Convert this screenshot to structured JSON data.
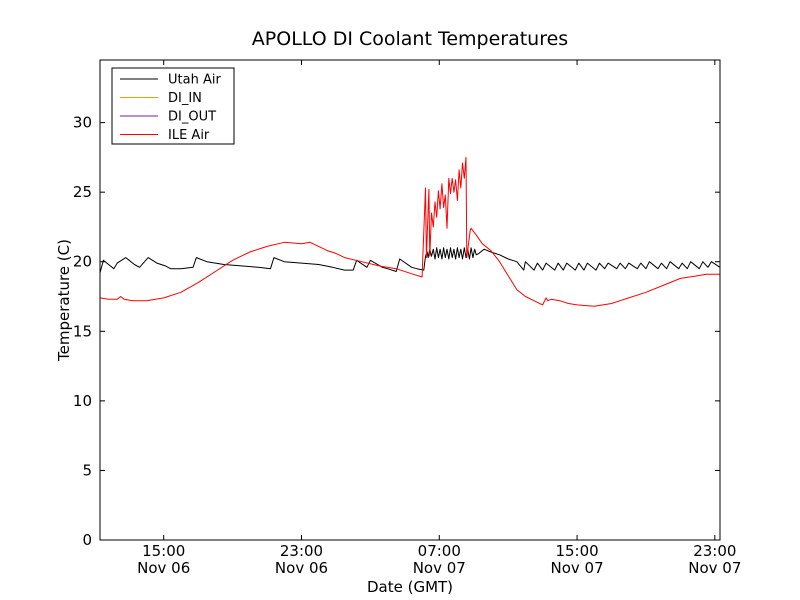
{
  "chart_data": {
    "type": "line",
    "title": "APOLLO DI Coolant Temperatures",
    "xlabel": "Date (GMT)",
    "ylabel": "Temperature (C)",
    "ylim": [
      0,
      34.5
    ],
    "xlim_hours": [
      11.3,
      47.3
    ],
    "x_unit": "hours since Nov 06 00:00 GMT",
    "yticks": [
      0,
      5,
      10,
      15,
      20,
      25,
      30
    ],
    "xticks": [
      {
        "value": 15,
        "time": "15:00",
        "date": "Nov 06"
      },
      {
        "value": 23,
        "time": "23:00",
        "date": "Nov 06"
      },
      {
        "value": 31,
        "time": "07:00",
        "date": "Nov 07"
      },
      {
        "value": 39,
        "time": "15:00",
        "date": "Nov 07"
      },
      {
        "value": 47,
        "time": "23:00",
        "date": "Nov 07"
      }
    ],
    "legend": {
      "placement": "top-left",
      "entries": [
        "Utah Air",
        "DI_IN",
        "DI_OUT",
        "ILE Air"
      ]
    },
    "series": [
      {
        "name": "Utah Air",
        "color": "#000000",
        "x": [
          11.3,
          11.5,
          11.8,
          12.1,
          12.3,
          12.8,
          13.3,
          13.6,
          14.1,
          14.6,
          15.1,
          15.4,
          16.0,
          16.7,
          16.9,
          17.5,
          18.5,
          19.5,
          20.5,
          21.2,
          21.4,
          22.0,
          23.0,
          24.0,
          24.8,
          25.5,
          26.0,
          26.2,
          26.8,
          27.0,
          27.7,
          28.0,
          28.5,
          28.7,
          29.4,
          29.7,
          30.1,
          30.2,
          30.3,
          30.35,
          30.45,
          30.55,
          30.65,
          30.75,
          30.85,
          30.95,
          31.05,
          31.15,
          31.25,
          31.35,
          31.45,
          31.55,
          31.65,
          31.75,
          31.85,
          31.95,
          32.05,
          32.15,
          32.25,
          32.35,
          32.45,
          32.55,
          32.65,
          32.75,
          32.85,
          32.95,
          33.05,
          33.15,
          33.3,
          33.6,
          34.0,
          34.5,
          35.0,
          35.5,
          35.9,
          36.0,
          36.5,
          36.7,
          37.0,
          37.2,
          37.7,
          37.9,
          38.2,
          38.4,
          38.9,
          39.1,
          39.4,
          39.6,
          40.1,
          40.3,
          40.6,
          40.8,
          41.3,
          41.5,
          41.8,
          42.0,
          42.5,
          42.7,
          43.0,
          43.2,
          43.7,
          43.9,
          44.2,
          44.4,
          44.9,
          45.1,
          45.4,
          45.6,
          46.1,
          46.3,
          46.6,
          46.8,
          47.3
        ],
        "y": [
          19.2,
          20.1,
          19.8,
          19.5,
          19.9,
          20.3,
          19.8,
          19.6,
          20.3,
          19.9,
          19.7,
          19.5,
          19.5,
          19.6,
          20.3,
          20.0,
          19.8,
          19.7,
          19.6,
          19.5,
          20.3,
          20.0,
          19.9,
          19.8,
          19.6,
          19.4,
          19.4,
          20.1,
          19.6,
          20.1,
          19.6,
          19.5,
          19.3,
          20.2,
          19.6,
          19.5,
          19.4,
          20.4,
          20.7,
          20.3,
          20.9,
          20.4,
          20.9,
          20.2,
          21.0,
          20.3,
          20.9,
          20.2,
          21.0,
          20.3,
          20.9,
          20.2,
          21.0,
          20.3,
          20.9,
          20.2,
          21.0,
          20.3,
          20.9,
          20.2,
          21.0,
          20.3,
          20.9,
          20.2,
          21.0,
          20.3,
          20.9,
          20.5,
          20.6,
          20.9,
          20.7,
          20.5,
          20.2,
          20.0,
          19.4,
          20.0,
          19.4,
          19.9,
          19.4,
          19.9,
          19.4,
          19.9,
          19.4,
          19.9,
          19.4,
          19.9,
          19.4,
          19.9,
          19.4,
          19.9,
          19.5,
          19.9,
          19.5,
          19.9,
          19.5,
          19.9,
          19.5,
          19.9,
          19.5,
          20.0,
          19.5,
          19.9,
          19.5,
          20.0,
          19.5,
          19.9,
          19.5,
          20.0,
          19.5,
          20.0,
          19.6,
          20.0,
          19.6
        ]
      },
      {
        "name": "DI_IN",
        "color": "#e6a000",
        "x": [],
        "y": []
      },
      {
        "name": "DI_OUT",
        "color": "#7a1fa0",
        "x": [],
        "y": []
      },
      {
        "name": "ILE Air",
        "color": "#ff0000",
        "x": [
          11.3,
          11.8,
          12.3,
          12.5,
          12.7,
          13.2,
          14.0,
          15.0,
          16.0,
          17.0,
          18.0,
          19.0,
          20.0,
          21.0,
          22.0,
          23.0,
          23.5,
          24.5,
          25.0,
          25.5,
          26.5,
          27.5,
          28.5,
          29.5,
          30.0,
          30.05,
          30.2,
          30.25,
          30.4,
          30.45,
          30.55,
          30.65,
          30.75,
          30.85,
          30.95,
          31.05,
          31.15,
          31.25,
          31.35,
          31.45,
          31.55,
          31.65,
          31.75,
          31.85,
          31.95,
          32.05,
          32.15,
          32.25,
          32.35,
          32.45,
          32.55,
          32.6,
          32.75,
          32.8,
          32.85,
          33.1,
          33.5,
          34.0,
          34.5,
          35.0,
          35.5,
          36.0,
          36.5,
          37.0,
          37.2,
          37.3,
          37.5,
          38.0,
          38.5,
          39.0,
          40.0,
          41.0,
          41.5,
          42.0,
          43.0,
          44.0,
          45.0,
          46.0,
          46.5,
          47.3
        ],
        "y": [
          17.4,
          17.3,
          17.3,
          17.5,
          17.3,
          17.2,
          17.2,
          17.4,
          17.8,
          18.5,
          19.3,
          20.1,
          20.7,
          21.1,
          21.4,
          21.3,
          21.4,
          20.8,
          20.6,
          20.3,
          20.0,
          19.7,
          19.5,
          19.1,
          18.9,
          20.5,
          25.3,
          20.3,
          25.2,
          20.4,
          23.5,
          22.5,
          24.3,
          23.2,
          25.1,
          23.8,
          25.6,
          23.9,
          24.8,
          22.4,
          26.0,
          24.9,
          26.0,
          25.0,
          25.9,
          24.4,
          26.6,
          25.3,
          27.1,
          26.0,
          27.5,
          20.3,
          21.8,
          22.3,
          22.4,
          22.0,
          21.3,
          20.8,
          20.0,
          19.0,
          18.0,
          17.5,
          17.2,
          16.9,
          17.4,
          17.2,
          17.3,
          17.2,
          17.0,
          16.9,
          16.8,
          17.0,
          17.2,
          17.4,
          17.8,
          18.3,
          18.8,
          19.0,
          19.1,
          19.1
        ]
      }
    ]
  }
}
